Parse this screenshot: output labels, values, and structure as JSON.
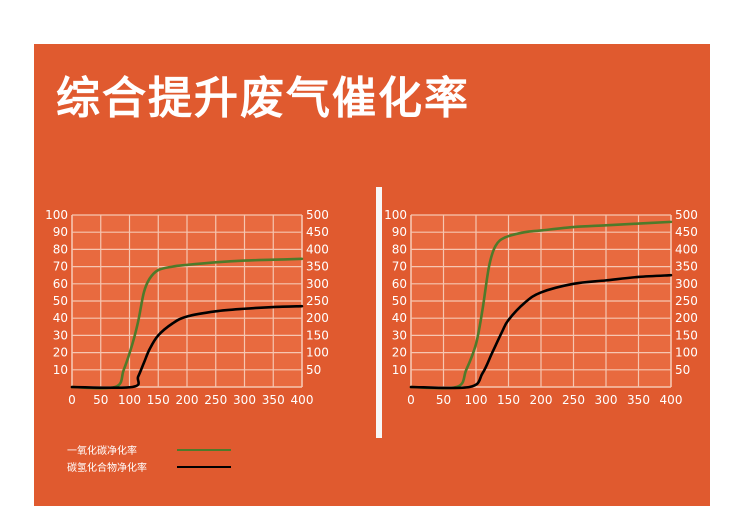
{
  "title": "综合提升废气催化率",
  "colors": {
    "background": "#e05a2f",
    "plot_area": "#e86a3f",
    "grid": "#f6c6b1",
    "axis_text": "#ffffff",
    "co_line": "#4f7a2a",
    "hc_line": "#000000",
    "divider": "#f7f7f7"
  },
  "legend": [
    {
      "label": "一氧化碳净化率",
      "color": "#4f7a2a"
    },
    {
      "label": "碳氢化合物净化率",
      "color": "#000000"
    }
  ],
  "chart_data": [
    {
      "type": "line",
      "x_ticks": [
        "0",
        "50",
        "100",
        "150",
        "200",
        "250",
        "300",
        "350",
        "400"
      ],
      "y_left_ticks": [
        "10",
        "20",
        "30",
        "40",
        "50",
        "60",
        "70",
        "80",
        "90",
        "100"
      ],
      "y_right_ticks": [
        "50",
        "100",
        "150",
        "200",
        "250",
        "300",
        "350",
        "400",
        "450",
        "500"
      ],
      "xlim": [
        0,
        400
      ],
      "ylim": [
        0,
        100
      ],
      "grid": true,
      "series": [
        {
          "color": "#4f7a2a",
          "points": [
            [
              0,
              0
            ],
            [
              75,
              0
            ],
            [
              90,
              10
            ],
            [
              105,
              25
            ],
            [
              115,
              38
            ],
            [
              125,
              55
            ],
            [
              135,
              63
            ],
            [
              150,
              68
            ],
            [
              175,
              70
            ],
            [
              200,
              71
            ],
            [
              250,
              72.5
            ],
            [
              300,
              73.5
            ],
            [
              350,
              74
            ],
            [
              400,
              74.5
            ]
          ]
        },
        {
          "color": "#000000",
          "points": [
            [
              0,
              0
            ],
            [
              105,
              0
            ],
            [
              115,
              6
            ],
            [
              125,
              14
            ],
            [
              135,
              22
            ],
            [
              150,
              30
            ],
            [
              175,
              37
            ],
            [
              200,
              41
            ],
            [
              250,
              44
            ],
            [
              300,
              45.5
            ],
            [
              350,
              46.5
            ],
            [
              400,
              47
            ]
          ]
        }
      ]
    },
    {
      "type": "line",
      "x_ticks": [
        "0",
        "50",
        "100",
        "150",
        "200",
        "250",
        "300",
        "350",
        "400"
      ],
      "y_left_ticks": [
        "10",
        "20",
        "30",
        "40",
        "50",
        "60",
        "70",
        "80",
        "90",
        "100"
      ],
      "y_right_ticks": [
        "50",
        "100",
        "150",
        "200",
        "250",
        "300",
        "350",
        "400",
        "450",
        "500"
      ],
      "xlim": [
        0,
        400
      ],
      "ylim": [
        0,
        100
      ],
      "grid": true,
      "series": [
        {
          "color": "#4f7a2a",
          "points": [
            [
              0,
              0
            ],
            [
              70,
              0
            ],
            [
              85,
              10
            ],
            [
              100,
              25
            ],
            [
              110,
              45
            ],
            [
              120,
              70
            ],
            [
              130,
              82
            ],
            [
              145,
              87
            ],
            [
              175,
              90
            ],
            [
              200,
              91
            ],
            [
              250,
              93
            ],
            [
              300,
              94
            ],
            [
              350,
              95
            ],
            [
              400,
              96
            ]
          ]
        },
        {
          "color": "#000000",
          "points": [
            [
              0,
              0
            ],
            [
              90,
              0
            ],
            [
              110,
              8
            ],
            [
              125,
              20
            ],
            [
              140,
              32
            ],
            [
              150,
              39
            ],
            [
              175,
              49
            ],
            [
              200,
              55
            ],
            [
              250,
              60
            ],
            [
              300,
              62
            ],
            [
              350,
              64
            ],
            [
              400,
              65
            ]
          ]
        }
      ]
    }
  ]
}
